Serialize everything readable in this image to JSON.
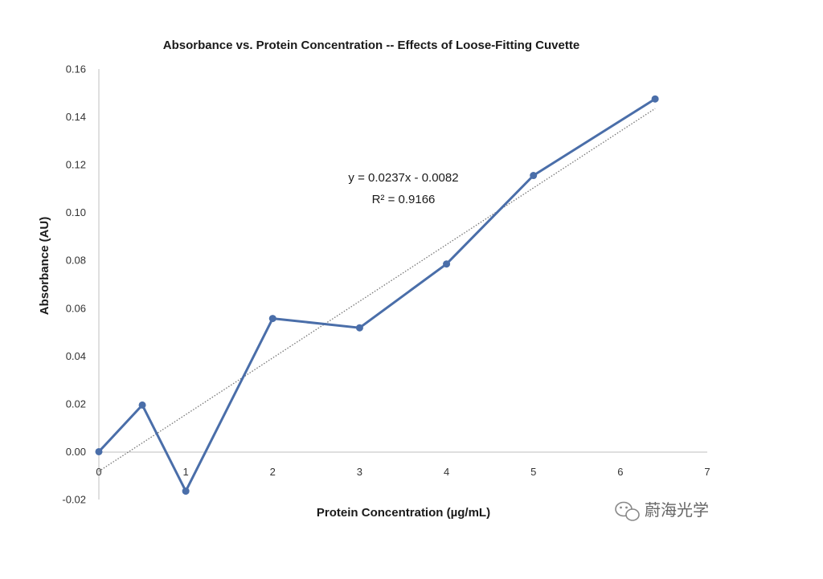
{
  "chart_data": {
    "type": "line",
    "title": "Absorbance vs. Protein Concentration -- Effects of Loose-Fitting Cuvette",
    "xlabel": "Protein Concentration (µg/mL)",
    "ylabel": "Absorbance (AU)",
    "xlim": [
      0,
      7
    ],
    "ylim": [
      -0.02,
      0.16
    ],
    "x_ticks": [
      "0",
      "1",
      "2",
      "3",
      "4",
      "5",
      "6",
      "7"
    ],
    "y_ticks": [
      "-0.02",
      "0.00",
      "0.02",
      "0.04",
      "0.06",
      "0.08",
      "0.10",
      "0.12",
      "0.14",
      "0.16"
    ],
    "grid": false,
    "series": [
      {
        "x": [
          0,
          0.5,
          1,
          2,
          3,
          4,
          5,
          6.4
        ],
        "y": [
          0.0,
          0.0195,
          -0.0165,
          0.0557,
          0.0518,
          0.0785,
          0.1155,
          0.1475
        ],
        "color": "#4a6ea9"
      }
    ],
    "trendline": {
      "type": "linear",
      "slope": 0.0237,
      "intercept": -0.0082,
      "x_range": [
        0,
        6.4
      ],
      "color": "#777777",
      "equation": "y = 0.0237x - 0.0082",
      "r_squared": "R² = 0.9166"
    }
  },
  "watermark": {
    "text": "蔚海光学",
    "icon": "wechat-icon"
  }
}
